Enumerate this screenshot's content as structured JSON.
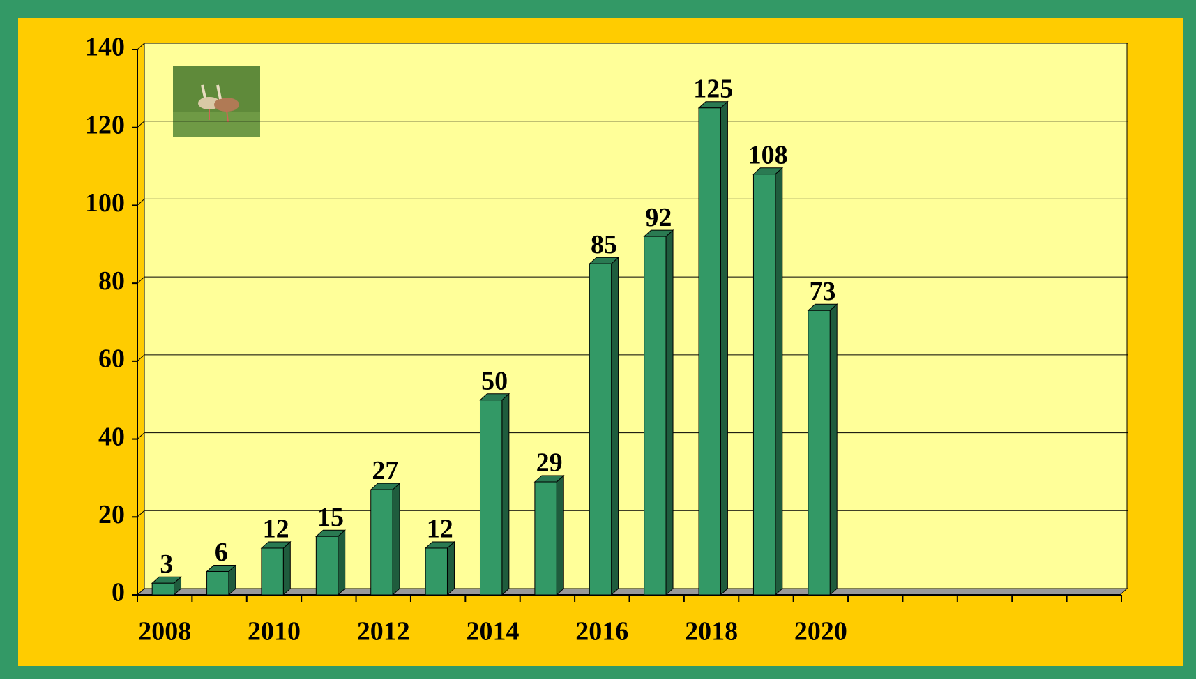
{
  "chart_data": {
    "type": "bar",
    "categories": [
      "2008",
      null,
      "2010",
      null,
      "2012",
      null,
      "2014",
      null,
      "2016",
      null,
      "2018",
      null,
      "2020",
      null,
      null,
      null,
      null,
      null
    ],
    "values": [
      3,
      6,
      12,
      15,
      27,
      12,
      50,
      29,
      85,
      92,
      125,
      108,
      73,
      null,
      null,
      null,
      null,
      null
    ],
    "color": "#339966",
    "ylim": [
      0,
      140
    ],
    "yticks": [
      0,
      20,
      40,
      60,
      80,
      100,
      120,
      140
    ],
    "grid": true
  }
}
